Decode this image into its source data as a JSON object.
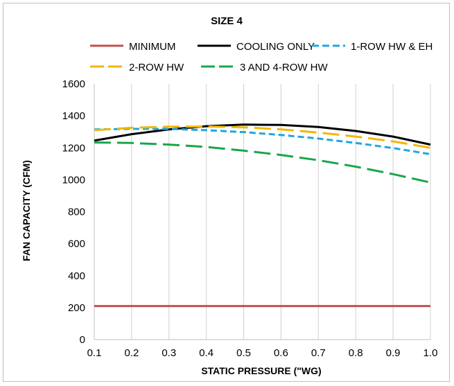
{
  "chart_data": {
    "type": "line",
    "title": "SIZE 4",
    "xlabel": "STATIC PRESSURE (\"WG)",
    "ylabel": "FAN CAPACITY (CFM)",
    "x": [
      0.1,
      0.2,
      0.3,
      0.4,
      0.5,
      0.6,
      0.7,
      0.8,
      0.9,
      1.0
    ],
    "xticks": [
      "0.1",
      "0.2",
      "0.3",
      "0.4",
      "0.5",
      "0.6",
      "0.7",
      "0.8",
      "0.9",
      "1.0"
    ],
    "yticks": [
      "0",
      "200",
      "400",
      "600",
      "800",
      "1000",
      "1200",
      "1400",
      "1600"
    ],
    "xlim": [
      0.1,
      1.0
    ],
    "ylim": [
      0,
      1600
    ],
    "grid": "vertical",
    "legend_position": "top",
    "series": [
      {
        "name": "MINIMUM",
        "color": "#c0504d",
        "dash": "solid",
        "values": [
          210,
          210,
          210,
          210,
          210,
          210,
          210,
          210,
          210,
          210
        ]
      },
      {
        "name": "COOLING ONLY",
        "color": "#000000",
        "dash": "solid",
        "values": [
          1245,
          1285,
          1315,
          1335,
          1345,
          1343,
          1330,
          1305,
          1270,
          1220
        ]
      },
      {
        "name": "1-ROW HW & EH",
        "color": "#1ea7e0",
        "dash": "short",
        "values": [
          1315,
          1318,
          1318,
          1310,
          1298,
          1280,
          1258,
          1230,
          1198,
          1160
        ]
      },
      {
        "name": "2-ROW HW",
        "color": "#f2b705",
        "dash": "long",
        "values": [
          1310,
          1325,
          1332,
          1333,
          1328,
          1315,
          1295,
          1270,
          1240,
          1200
        ]
      },
      {
        "name": "3 AND 4-ROW HW",
        "color": "#1aa64a",
        "dash": "long",
        "values": [
          1233,
          1230,
          1220,
          1205,
          1182,
          1155,
          1122,
          1082,
          1035,
          983
        ]
      }
    ]
  }
}
